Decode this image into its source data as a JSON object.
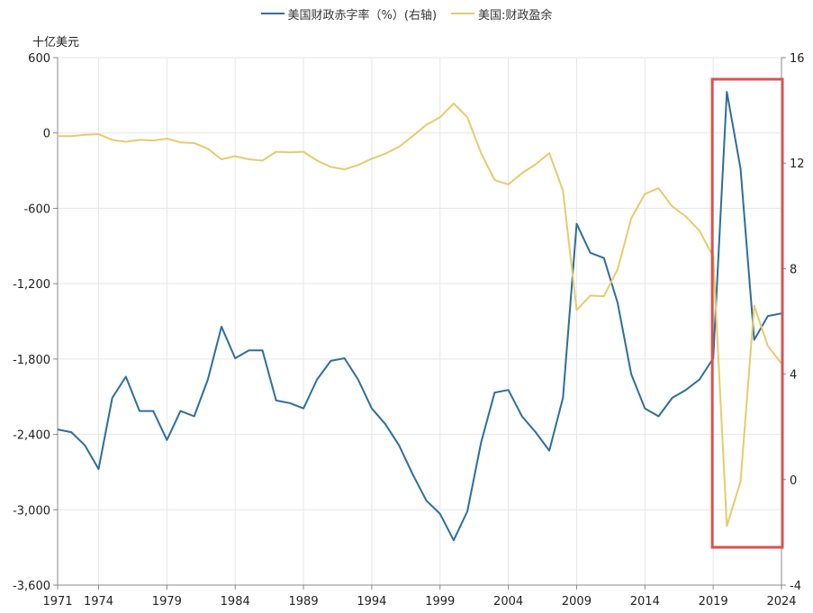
{
  "chart_data": {
    "type": "line",
    "unit_label": "十亿美元",
    "x": [
      1971,
      1972,
      1973,
      1974,
      1975,
      1976,
      1977,
      1978,
      1979,
      1980,
      1981,
      1982,
      1983,
      1984,
      1985,
      1986,
      1987,
      1988,
      1989,
      1990,
      1991,
      1992,
      1993,
      1994,
      1995,
      1996,
      1997,
      1998,
      1999,
      2000,
      2001,
      2002,
      2003,
      2004,
      2005,
      2006,
      2007,
      2008,
      2009,
      2010,
      2011,
      2012,
      2013,
      2014,
      2015,
      2016,
      2017,
      2018,
      2019,
      2020,
      2021,
      2022,
      2023,
      2024
    ],
    "xticks": [
      "1971",
      "1974",
      "1979",
      "1984",
      "1989",
      "1994",
      "1999",
      "2004",
      "2009",
      "2014",
      "2019",
      "2024"
    ],
    "xtick_values": [
      1971,
      1974,
      1979,
      1984,
      1989,
      1994,
      1999,
      2004,
      2009,
      2014,
      2019,
      2024
    ],
    "left_axis": {
      "ticks": [
        "600",
        "0",
        "-600",
        "-1,200",
        "-1,800",
        "-2,400",
        "-3,000",
        "-3,600"
      ],
      "tick_values": [
        600,
        0,
        -600,
        -1200,
        -1800,
        -2400,
        -3000,
        -3600
      ],
      "ylim": [
        -3600,
        600
      ]
    },
    "right_axis": {
      "ticks": [
        "16",
        "12",
        "8",
        "4",
        "0",
        "-4"
      ],
      "tick_values": [
        16,
        12,
        8,
        4,
        0,
        -4
      ],
      "ylim": [
        -4,
        16
      ]
    },
    "series": [
      {
        "name": "美国财政赤字率（%）(右轴)",
        "axis": "right",
        "color": "#2e6e9a",
        "values": [
          1.9,
          1.8,
          1.3,
          0.4,
          3.1,
          3.9,
          2.6,
          2.6,
          1.5,
          2.6,
          2.4,
          3.8,
          5.8,
          4.6,
          4.9,
          4.9,
          3.0,
          2.9,
          2.7,
          3.8,
          4.5,
          4.6,
          3.8,
          2.7,
          2.1,
          1.3,
          0.2,
          -0.8,
          -1.3,
          -2.3,
          -1.2,
          1.4,
          3.3,
          3.4,
          2.4,
          1.8,
          1.1,
          3.1,
          9.7,
          8.6,
          8.4,
          6.7,
          4.0,
          2.7,
          2.4,
          3.1,
          3.4,
          3.8,
          4.6,
          14.7,
          11.8,
          5.3,
          6.2,
          6.3
        ]
      },
      {
        "name": "美国:财政盈余",
        "axis": "left",
        "color": "#e6cb6e",
        "values": [
          -25,
          -25,
          -15,
          -10,
          -55,
          -70,
          -55,
          -60,
          -45,
          -75,
          -80,
          -125,
          -210,
          -185,
          -210,
          -220,
          -150,
          -155,
          -150,
          -220,
          -270,
          -290,
          -255,
          -205,
          -165,
          -110,
          -25,
          65,
          125,
          235,
          125,
          -160,
          -375,
          -410,
          -320,
          -250,
          -160,
          -460,
          -1410,
          -1295,
          -1300,
          -1085,
          -680,
          -485,
          -440,
          -585,
          -665,
          -780,
          -985,
          -3130,
          -2775,
          -1375,
          -1695,
          -1835
        ]
      }
    ],
    "annotation": {
      "type": "highlight-box",
      "color": "#d9534f",
      "x_from": 2019,
      "x_to": 2024
    }
  }
}
